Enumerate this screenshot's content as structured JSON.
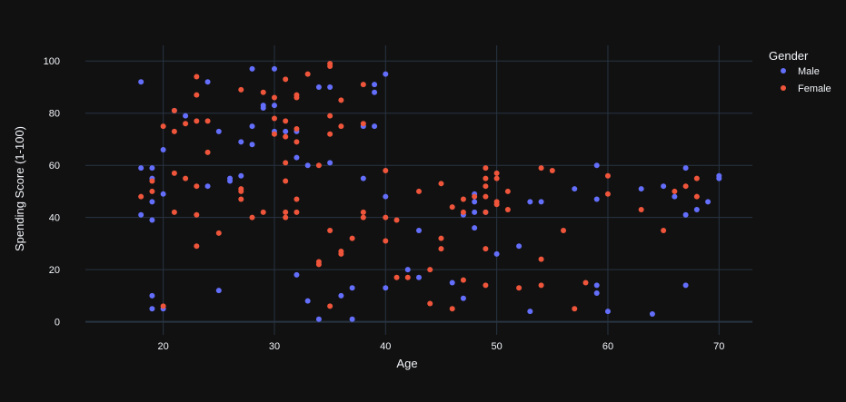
{
  "chart_data": {
    "type": "scatter",
    "xlabel": "Age",
    "ylabel": "Spending Score (1-100)",
    "xlim": [
      13,
      73
    ],
    "ylim": [
      -5,
      106
    ],
    "x_ticks": [
      20,
      30,
      40,
      50,
      60,
      70
    ],
    "y_ticks": [
      0,
      20,
      40,
      60,
      80,
      100
    ],
    "grid": true,
    "legend": {
      "title": "Gender",
      "placement": "top-right"
    },
    "series": [
      {
        "name": "Male",
        "color": "#636efa",
        "points": [
          [
            18,
            92
          ],
          [
            18,
            59
          ],
          [
            18,
            41
          ],
          [
            19,
            59
          ],
          [
            19,
            55
          ],
          [
            19,
            46
          ],
          [
            19,
            39
          ],
          [
            19,
            10
          ],
          [
            19,
            5
          ],
          [
            20,
            66
          ],
          [
            20,
            49
          ],
          [
            20,
            5
          ],
          [
            21,
            81
          ],
          [
            22,
            79
          ],
          [
            24,
            92
          ],
          [
            24,
            52
          ],
          [
            25,
            73
          ],
          [
            25,
            12
          ],
          [
            26,
            55
          ],
          [
            26,
            54
          ],
          [
            27,
            69
          ],
          [
            27,
            56
          ],
          [
            28,
            97
          ],
          [
            28,
            75
          ],
          [
            28,
            68
          ],
          [
            29,
            83
          ],
          [
            29,
            82
          ],
          [
            30,
            97
          ],
          [
            30,
            83
          ],
          [
            30,
            73
          ],
          [
            31,
            73
          ],
          [
            32,
            73
          ],
          [
            32,
            63
          ],
          [
            32,
            18
          ],
          [
            33,
            60
          ],
          [
            33,
            8
          ],
          [
            34,
            90
          ],
          [
            34,
            1
          ],
          [
            35,
            90
          ],
          [
            35,
            61
          ],
          [
            36,
            10
          ],
          [
            37,
            13
          ],
          [
            37,
            1
          ],
          [
            38,
            75
          ],
          [
            38,
            55
          ],
          [
            39,
            91
          ],
          [
            39,
            88
          ],
          [
            39,
            75
          ],
          [
            40,
            95
          ],
          [
            40,
            48
          ],
          [
            40,
            13
          ],
          [
            42,
            20
          ],
          [
            43,
            35
          ],
          [
            43,
            17
          ],
          [
            46,
            15
          ],
          [
            47,
            41
          ],
          [
            47,
            9
          ],
          [
            48,
            49
          ],
          [
            48,
            46
          ],
          [
            48,
            42
          ],
          [
            48,
            36
          ],
          [
            49,
            42
          ],
          [
            50,
            26
          ],
          [
            52,
            29
          ],
          [
            53,
            46
          ],
          [
            53,
            4
          ],
          [
            54,
            46
          ],
          [
            57,
            51
          ],
          [
            59,
            60
          ],
          [
            59,
            47
          ],
          [
            59,
            14
          ],
          [
            59,
            11
          ],
          [
            60,
            4
          ],
          [
            63,
            51
          ],
          [
            64,
            3
          ],
          [
            65,
            52
          ],
          [
            66,
            48
          ],
          [
            67,
            59
          ],
          [
            67,
            41
          ],
          [
            67,
            14
          ],
          [
            68,
            43
          ],
          [
            69,
            46
          ],
          [
            70,
            56
          ],
          [
            70,
            55
          ]
        ]
      },
      {
        "name": "Female",
        "color": "#ef553b",
        "points": [
          [
            18,
            48
          ],
          [
            19,
            54
          ],
          [
            19,
            50
          ],
          [
            20,
            75
          ],
          [
            20,
            6
          ],
          [
            21,
            81
          ],
          [
            21,
            73
          ],
          [
            21,
            57
          ],
          [
            21,
            42
          ],
          [
            22,
            76
          ],
          [
            22,
            55
          ],
          [
            23,
            94
          ],
          [
            23,
            87
          ],
          [
            23,
            77
          ],
          [
            23,
            52
          ],
          [
            23,
            41
          ],
          [
            23,
            29
          ],
          [
            24,
            77
          ],
          [
            24,
            65
          ],
          [
            25,
            34
          ],
          [
            27,
            89
          ],
          [
            27,
            51
          ],
          [
            27,
            50
          ],
          [
            27,
            47
          ],
          [
            28,
            40
          ],
          [
            29,
            88
          ],
          [
            29,
            42
          ],
          [
            30,
            86
          ],
          [
            30,
            78
          ],
          [
            30,
            72
          ],
          [
            31,
            93
          ],
          [
            31,
            77
          ],
          [
            31,
            71
          ],
          [
            31,
            61
          ],
          [
            31,
            54
          ],
          [
            31,
            42
          ],
          [
            31,
            40
          ],
          [
            32,
            87
          ],
          [
            32,
            86
          ],
          [
            32,
            74
          ],
          [
            32,
            69
          ],
          [
            32,
            47
          ],
          [
            32,
            42
          ],
          [
            33,
            95
          ],
          [
            34,
            60
          ],
          [
            34,
            23
          ],
          [
            34,
            22
          ],
          [
            35,
            99
          ],
          [
            35,
            98
          ],
          [
            35,
            79
          ],
          [
            35,
            72
          ],
          [
            35,
            35
          ],
          [
            35,
            6
          ],
          [
            36,
            85
          ],
          [
            36,
            75
          ],
          [
            36,
            27
          ],
          [
            36,
            26
          ],
          [
            37,
            32
          ],
          [
            38,
            91
          ],
          [
            38,
            76
          ],
          [
            38,
            42
          ],
          [
            38,
            40
          ],
          [
            40,
            58
          ],
          [
            40,
            40
          ],
          [
            40,
            31
          ],
          [
            41,
            39
          ],
          [
            41,
            17
          ],
          [
            42,
            17
          ],
          [
            43,
            50
          ],
          [
            44,
            20
          ],
          [
            44,
            7
          ],
          [
            45,
            53
          ],
          [
            45,
            32
          ],
          [
            45,
            28
          ],
          [
            46,
            44
          ],
          [
            46,
            5
          ],
          [
            47,
            47
          ],
          [
            47,
            42
          ],
          [
            47,
            16
          ],
          [
            48,
            48
          ],
          [
            49,
            59
          ],
          [
            49,
            55
          ],
          [
            49,
            52
          ],
          [
            49,
            48
          ],
          [
            49,
            42
          ],
          [
            49,
            28
          ],
          [
            49,
            14
          ],
          [
            50,
            57
          ],
          [
            50,
            55
          ],
          [
            50,
            46
          ],
          [
            50,
            45
          ],
          [
            51,
            50
          ],
          [
            51,
            43
          ],
          [
            52,
            13
          ],
          [
            54,
            59
          ],
          [
            54,
            24
          ],
          [
            54,
            14
          ],
          [
            55,
            58
          ],
          [
            56,
            35
          ],
          [
            57,
            5
          ],
          [
            58,
            15
          ],
          [
            60,
            56
          ],
          [
            60,
            49
          ],
          [
            63,
            43
          ],
          [
            65,
            35
          ],
          [
            66,
            50
          ],
          [
            67,
            52
          ],
          [
            68,
            55
          ],
          [
            68,
            48
          ]
        ]
      }
    ]
  }
}
